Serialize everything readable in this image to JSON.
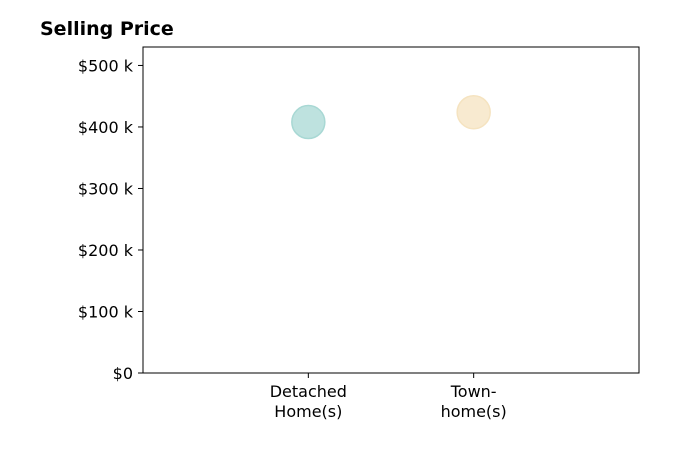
{
  "chart_data": {
    "type": "scatter",
    "title": "Selling Price",
    "xlabel": "",
    "ylabel": "",
    "categories": [
      [
        "Detached",
        "Home(s)"
      ],
      [
        "Town-",
        "home(s)"
      ]
    ],
    "x_positions": [
      1,
      2
    ],
    "xlim": [
      0,
      3
    ],
    "series": [
      {
        "values": [
          408000
        ],
        "color": "#a8d8d4"
      },
      {
        "values": [
          424000
        ],
        "color": "#f5e3c0"
      }
    ],
    "yticks": [
      0,
      100000,
      200000,
      300000,
      400000,
      500000
    ],
    "ytick_labels": [
      "$0",
      "$100 k",
      "$200 k",
      "$300 k",
      "$400 k",
      "$500 k"
    ],
    "ylim": [
      0,
      530000
    ],
    "grid": false,
    "legend": "none"
  }
}
